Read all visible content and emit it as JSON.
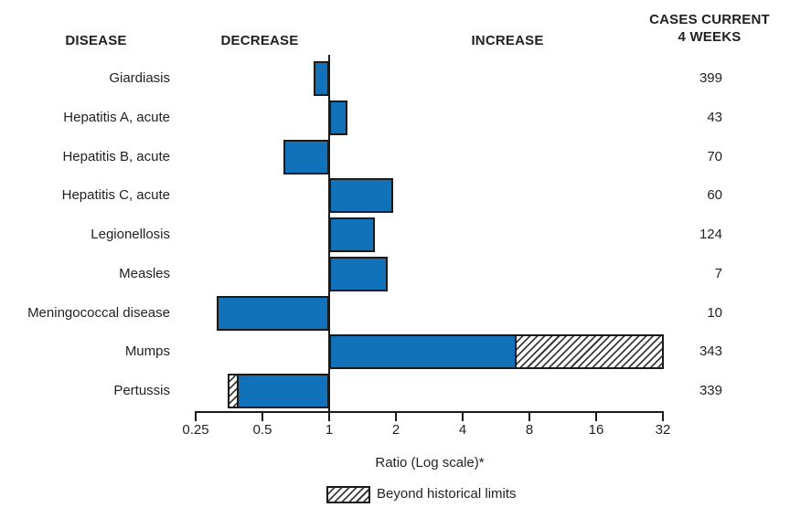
{
  "header": {
    "disease": "DISEASE",
    "decrease": "DECREASE",
    "increase": "INCREASE",
    "cases_line1": "CASES CURRENT",
    "cases_line2": "4 WEEKS"
  },
  "chart_data": {
    "type": "bar",
    "orientation": "horizontal",
    "scale": "log2",
    "axis": {
      "label": "Ratio (Log scale)*",
      "ticks": [
        0.25,
        0.5,
        1,
        2,
        4,
        8,
        16,
        32
      ],
      "baseline": 1,
      "range": [
        0.25,
        32
      ]
    },
    "legend": {
      "hatch_label": "Beyond historical limits"
    },
    "colors": {
      "bar_fill": "#1272b9",
      "bar_border": "#1a1a1a",
      "text": "#231f20"
    },
    "rows": [
      {
        "disease": "Giardiasis",
        "cases": "399",
        "segments": [
          {
            "from": 0.85,
            "to": 1,
            "fill": "blue"
          }
        ]
      },
      {
        "disease": "Hepatitis A, acute",
        "cases": "43",
        "segments": [
          {
            "from": 1,
            "to": 1.21,
            "fill": "blue"
          }
        ]
      },
      {
        "disease": "Hepatitis B, acute",
        "cases": "70",
        "segments": [
          {
            "from": 0.62,
            "to": 1,
            "fill": "blue"
          }
        ]
      },
      {
        "disease": "Hepatitis C, acute",
        "cases": "60",
        "segments": [
          {
            "from": 1,
            "to": 1.95,
            "fill": "blue"
          }
        ]
      },
      {
        "disease": "Legionellosis",
        "cases": "124",
        "segments": [
          {
            "from": 1,
            "to": 1.6,
            "fill": "blue"
          }
        ]
      },
      {
        "disease": "Measles",
        "cases": "7",
        "segments": [
          {
            "from": 1,
            "to": 1.83,
            "fill": "blue"
          }
        ]
      },
      {
        "disease": "Meningococcal disease",
        "cases": "10",
        "segments": [
          {
            "from": 0.31,
            "to": 1,
            "fill": "blue"
          }
        ]
      },
      {
        "disease": "Mumps",
        "cases": "343",
        "segments": [
          {
            "from": 1,
            "to": 7,
            "fill": "blue"
          },
          {
            "from": 7,
            "to": 32.3,
            "fill": "hatch"
          }
        ]
      },
      {
        "disease": "Pertussis",
        "cases": "339",
        "segments": [
          {
            "from": 0.35,
            "to": 0.39,
            "fill": "hatch"
          },
          {
            "from": 0.39,
            "to": 1,
            "fill": "blue"
          }
        ]
      }
    ]
  }
}
